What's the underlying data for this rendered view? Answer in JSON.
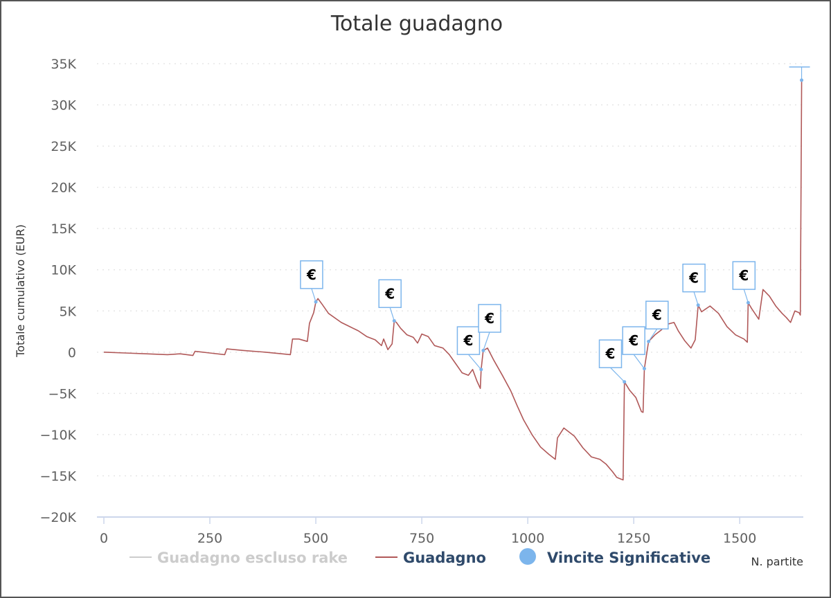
{
  "chart_data": {
    "type": "line",
    "title": "Totale guadagno",
    "xlabel": "N. partite",
    "ylabel": "Totale cumulativo (EUR)",
    "xlim": [
      0,
      1650
    ],
    "ylim": [
      -20000,
      35000
    ],
    "x_ticks": [
      0,
      250,
      500,
      750,
      1000,
      1250,
      1500
    ],
    "x_tick_labels": [
      "0",
      "250",
      "500",
      "750",
      "1000",
      "1250",
      "1500"
    ],
    "y_ticks": [
      35000,
      30000,
      25000,
      20000,
      15000,
      10000,
      5000,
      0,
      -5000,
      -10000,
      -15000,
      -20000
    ],
    "y_tick_labels": [
      "35K",
      "30K",
      "25K",
      "20K",
      "15K",
      "10K",
      "5K",
      "0",
      "−5K",
      "−10K",
      "−15K",
      "−20K"
    ],
    "grid": true,
    "legend_position": "bottom",
    "colors": {
      "title": "#2f4a6b",
      "series_guadagno": "#b05858",
      "series_rake": "#cccccc",
      "flag": "#7cb5ec",
      "axis": "#ccd6eb",
      "grid": "#e6e6e6",
      "legend_active": "#2f4a6b",
      "legend_hidden": "#cccccc"
    },
    "legend": [
      {
        "name": "Guadagno escluso rake",
        "symbol": "line",
        "hidden": true
      },
      {
        "name": "Guadagno",
        "symbol": "line",
        "hidden": false
      },
      {
        "name": "Vincite Significative",
        "symbol": "circle",
        "hidden": false
      }
    ],
    "series": [
      {
        "name": "Guadagno",
        "points": [
          [
            0,
            0
          ],
          [
            50,
            -100
          ],
          [
            100,
            -200
          ],
          [
            150,
            -300
          ],
          [
            180,
            -200
          ],
          [
            210,
            -400
          ],
          [
            215,
            100
          ],
          [
            250,
            -100
          ],
          [
            285,
            -300
          ],
          [
            290,
            400
          ],
          [
            330,
            200
          ],
          [
            380,
            0
          ],
          [
            420,
            -200
          ],
          [
            440,
            -300
          ],
          [
            445,
            1600
          ],
          [
            460,
            1600
          ],
          [
            480,
            1300
          ],
          [
            485,
            3500
          ],
          [
            495,
            4800
          ],
          [
            500,
            6100
          ],
          [
            505,
            6500
          ],
          [
            515,
            5800
          ],
          [
            530,
            4700
          ],
          [
            560,
            3600
          ],
          [
            580,
            3100
          ],
          [
            600,
            2600
          ],
          [
            620,
            1900
          ],
          [
            640,
            1500
          ],
          [
            655,
            800
          ],
          [
            660,
            1600
          ],
          [
            670,
            300
          ],
          [
            680,
            1000
          ],
          [
            685,
            3800
          ],
          [
            690,
            3600
          ],
          [
            700,
            2900
          ],
          [
            715,
            2100
          ],
          [
            730,
            1800
          ],
          [
            740,
            1100
          ],
          [
            750,
            2200
          ],
          [
            765,
            1900
          ],
          [
            780,
            800
          ],
          [
            800,
            500
          ],
          [
            815,
            -300
          ],
          [
            830,
            -1400
          ],
          [
            845,
            -2500
          ],
          [
            860,
            -2800
          ],
          [
            870,
            -2100
          ],
          [
            880,
            -3500
          ],
          [
            888,
            -4400
          ],
          [
            890,
            -2100
          ],
          [
            895,
            200
          ],
          [
            905,
            500
          ],
          [
            920,
            -1000
          ],
          [
            940,
            -2800
          ],
          [
            960,
            -4700
          ],
          [
            975,
            -6500
          ],
          [
            990,
            -8200
          ],
          [
            1010,
            -10000
          ],
          [
            1030,
            -11500
          ],
          [
            1050,
            -12400
          ],
          [
            1065,
            -13000
          ],
          [
            1070,
            -10400
          ],
          [
            1085,
            -9200
          ],
          [
            1110,
            -10200
          ],
          [
            1130,
            -11600
          ],
          [
            1150,
            -12700
          ],
          [
            1170,
            -13000
          ],
          [
            1185,
            -13600
          ],
          [
            1200,
            -14500
          ],
          [
            1210,
            -15200
          ],
          [
            1220,
            -15400
          ],
          [
            1225,
            -15500
          ],
          [
            1228,
            -3600
          ],
          [
            1240,
            -4600
          ],
          [
            1255,
            -5500
          ],
          [
            1268,
            -7200
          ],
          [
            1272,
            -7300
          ],
          [
            1275,
            -2000
          ],
          [
            1285,
            1300
          ],
          [
            1300,
            2100
          ],
          [
            1315,
            2700
          ],
          [
            1330,
            3400
          ],
          [
            1345,
            3600
          ],
          [
            1355,
            2600
          ],
          [
            1370,
            1400
          ],
          [
            1385,
            500
          ],
          [
            1395,
            1500
          ],
          [
            1402,
            5700
          ],
          [
            1410,
            4900
          ],
          [
            1430,
            5600
          ],
          [
            1450,
            4700
          ],
          [
            1470,
            3100
          ],
          [
            1490,
            2100
          ],
          [
            1510,
            1600
          ],
          [
            1518,
            1200
          ],
          [
            1520,
            6000
          ],
          [
            1528,
            5300
          ],
          [
            1545,
            4000
          ],
          [
            1555,
            7600
          ],
          [
            1570,
            6800
          ],
          [
            1585,
            5600
          ],
          [
            1600,
            4700
          ],
          [
            1610,
            4200
          ],
          [
            1620,
            3600
          ],
          [
            1630,
            5000
          ],
          [
            1640,
            4800
          ],
          [
            1643,
            4500
          ],
          [
            1646,
            33000
          ],
          [
            1650,
            33000
          ]
        ]
      }
    ],
    "flags": [
      {
        "x": 500,
        "y": 6100,
        "label": "€",
        "title_x": 490,
        "title_y": 9400
      },
      {
        "x": 685,
        "y": 3800,
        "label": "€",
        "title_x": 675,
        "title_y": 7100
      },
      {
        "x": 890,
        "y": -2100,
        "label": "€",
        "title_x": 860,
        "title_y": 1400
      },
      {
        "x": 895,
        "y": 200,
        "label": "€",
        "title_x": 910,
        "title_y": 4100
      },
      {
        "x": 1228,
        "y": -3600,
        "label": "€",
        "title_x": 1195,
        "title_y": -200
      },
      {
        "x": 1275,
        "y": -2000,
        "label": "€",
        "title_x": 1250,
        "title_y": 1400
      },
      {
        "x": 1285,
        "y": 1300,
        "label": "€",
        "title_x": 1305,
        "title_y": 4500
      },
      {
        "x": 1402,
        "y": 5700,
        "label": "€",
        "title_x": 1392,
        "title_y": 9000
      },
      {
        "x": 1520,
        "y": 6000,
        "label": "€",
        "title_x": 1510,
        "title_y": 9300
      },
      {
        "x": 1646,
        "y": 33000,
        "label": "",
        "title_x": 1646,
        "title_y": 34600
      }
    ]
  }
}
